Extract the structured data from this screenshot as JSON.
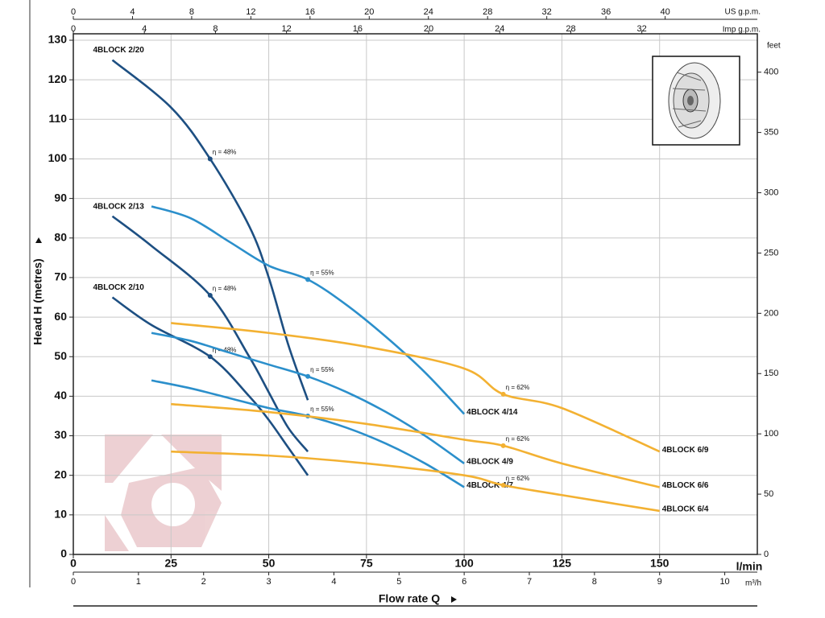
{
  "chart_data": {
    "type": "line",
    "y_label": "Head H (metres)",
    "x_title": "Flow rate Q",
    "x_unit": "l/min",
    "xlim": [
      0,
      175
    ],
    "xticks": [
      0,
      25,
      50,
      75,
      100,
      125,
      150
    ],
    "ylim": [
      0,
      130
    ],
    "yticks": [
      0,
      10,
      20,
      30,
      40,
      50,
      60,
      70,
      80,
      90,
      100,
      110,
      120,
      130
    ],
    "grid": true,
    "m3h_axis": {
      "label": "m³/h",
      "lim": [
        0,
        10.5
      ],
      "ticks": [
        0,
        1,
        2,
        3,
        4,
        5,
        6,
        7,
        8,
        9,
        10
      ]
    },
    "us_gpm_axis": {
      "label": "US g.p.m.",
      "lim": [
        0,
        46.23
      ],
      "ticks": [
        0,
        4,
        8,
        12,
        16,
        20,
        24,
        28,
        32,
        36,
        40
      ]
    },
    "imp_gpm_axis": {
      "label": "Imp g.p.m.",
      "lim": [
        0,
        38.5
      ],
      "ticks": [
        0,
        4,
        8,
        12,
        16,
        20,
        24,
        28,
        32
      ]
    },
    "feet_axis": {
      "label": "feet",
      "lim": [
        0,
        426.5
      ],
      "ticks": [
        0,
        50,
        100,
        150,
        200,
        250,
        300,
        350,
        400
      ]
    },
    "series": [
      {
        "name": "4BLOCK 2/20",
        "color": "#1d4f82",
        "x": [
          10,
          25,
          35,
          45,
          50,
          55,
          60
        ],
        "values": [
          125,
          113,
          100,
          83,
          70,
          53,
          39
        ],
        "efficiency": {
          "label": "η = 48%",
          "x": 35,
          "y": 100
        }
      },
      {
        "name": "4BLOCK 2/13",
        "color": "#1d4f82",
        "x": [
          10,
          20,
          35,
          45,
          50,
          55,
          60
        ],
        "values": [
          85.5,
          78,
          65.5,
          50,
          41,
          32,
          26
        ],
        "efficiency": {
          "label": "η = 48%",
          "x": 35,
          "y": 65.5
        }
      },
      {
        "name": "4BLOCK 2/10",
        "color": "#1d4f82",
        "x": [
          10,
          20,
          35,
          45,
          50,
          55,
          60
        ],
        "values": [
          65,
          58,
          50,
          40,
          34,
          27,
          20
        ],
        "efficiency": {
          "label": "η = 48%",
          "x": 35,
          "y": 50
        }
      },
      {
        "name": "4BLOCK 4/14",
        "color": "#2b8fcb",
        "x": [
          20,
          30,
          40,
          50,
          60,
          70,
          80,
          90,
          100
        ],
        "values": [
          88,
          85,
          79,
          73,
          69.5,
          63,
          55,
          46,
          35.5
        ],
        "efficiency": {
          "label": "η = 55%",
          "x": 60,
          "y": 69.5
        }
      },
      {
        "name": "4BLOCK 4/9",
        "color": "#2b8fcb",
        "x": [
          20,
          30,
          40,
          50,
          60,
          70,
          80,
          90,
          100
        ],
        "values": [
          56,
          54,
          51,
          48,
          45,
          41,
          36,
          30,
          23
        ],
        "efficiency": {
          "label": "η = 55%",
          "x": 60,
          "y": 45
        }
      },
      {
        "name": "4BLOCK 4/7",
        "color": "#2b8fcb",
        "x": [
          20,
          30,
          40,
          50,
          60,
          70,
          80,
          90,
          100
        ],
        "values": [
          44,
          42,
          39.5,
          37,
          35,
          32,
          28,
          23,
          17
        ],
        "efficiency": {
          "label": "η = 55%",
          "x": 60,
          "y": 35
        }
      },
      {
        "name": "4BLOCK 6/9",
        "color": "#f3b132",
        "x": [
          25,
          50,
          75,
          100,
          110,
          125,
          150
        ],
        "values": [
          58.5,
          56,
          52.5,
          47,
          40.5,
          37,
          26
        ],
        "efficiency": {
          "label": "η = 62%",
          "x": 110,
          "y": 40.5
        }
      },
      {
        "name": "4BLOCK 6/6",
        "color": "#f3b132",
        "x": [
          25,
          50,
          75,
          100,
          110,
          125,
          150
        ],
        "values": [
          38,
          36,
          33,
          29,
          27.5,
          23,
          17
        ],
        "efficiency": {
          "label": "η = 62%",
          "x": 110,
          "y": 27.5
        }
      },
      {
        "name": "4BLOCK 6/4",
        "color": "#f3b132",
        "x": [
          25,
          50,
          75,
          100,
          110,
          125,
          150
        ],
        "values": [
          26,
          25,
          23,
          20,
          17.5,
          15,
          11
        ],
        "efficiency": {
          "label": "η = 62%",
          "x": 110,
          "y": 17.5
        }
      }
    ]
  }
}
